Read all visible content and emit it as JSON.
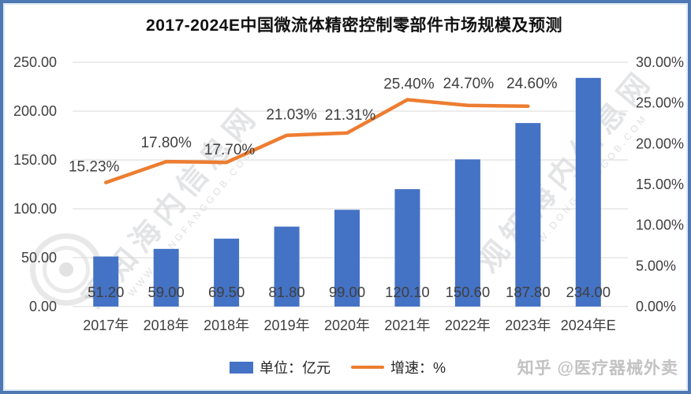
{
  "chart_data": {
    "type": "bar+line",
    "title": "2017-2024E中国微流体精密控制零部件市场规模及预测",
    "categories": [
      "2017年",
      "2018年",
      "2018年",
      "2019年",
      "2020年",
      "2021年",
      "2022年",
      "2023年",
      "2024年E"
    ],
    "series": [
      {
        "name": "单位：亿元",
        "type": "bar",
        "color": "#4472C4",
        "values": [
          51.2,
          59.0,
          69.5,
          81.8,
          99.0,
          120.1,
          150.6,
          187.8,
          234.0
        ],
        "labels": [
          "51.20",
          "59.00",
          "69.50",
          "81.80",
          "99.00",
          "120.10",
          "150.60",
          "187.80",
          "234.00"
        ]
      },
      {
        "name": "增速：%",
        "type": "line",
        "color": "#ED7D31",
        "values": [
          15.23,
          17.8,
          17.7,
          21.03,
          21.31,
          25.4,
          24.7,
          24.6
        ],
        "labels": [
          "15.23%",
          "17.80%",
          "17.70%",
          "21.03%",
          "21.31%",
          "25.40%",
          "24.70%",
          "24.60%"
        ]
      }
    ],
    "left_axis": {
      "min": 0,
      "max": 250,
      "step": 50,
      "tick_labels": [
        "0.00",
        "50.00",
        "100.00",
        "150.00",
        "200.00",
        "250.00"
      ]
    },
    "right_axis": {
      "min": 0,
      "max": 30,
      "step": 5,
      "tick_labels": [
        "0.00%",
        "5.00%",
        "10.00%",
        "15.00%",
        "20.00%",
        "25.00%",
        "30.00%"
      ]
    },
    "grid": true,
    "legend_position": "bottom"
  },
  "colors": {
    "bar": "#4472C4",
    "line": "#ED7D31",
    "frame": "#4E79B2",
    "grid": "#D9D9D9",
    "text": "#3F3F3F"
  },
  "watermarks": {
    "site_cn": "观知海内信息网",
    "site_url": "WWW.DONGFANGGOB.COM",
    "publisher": "知乎 @医疗器械外卖"
  }
}
